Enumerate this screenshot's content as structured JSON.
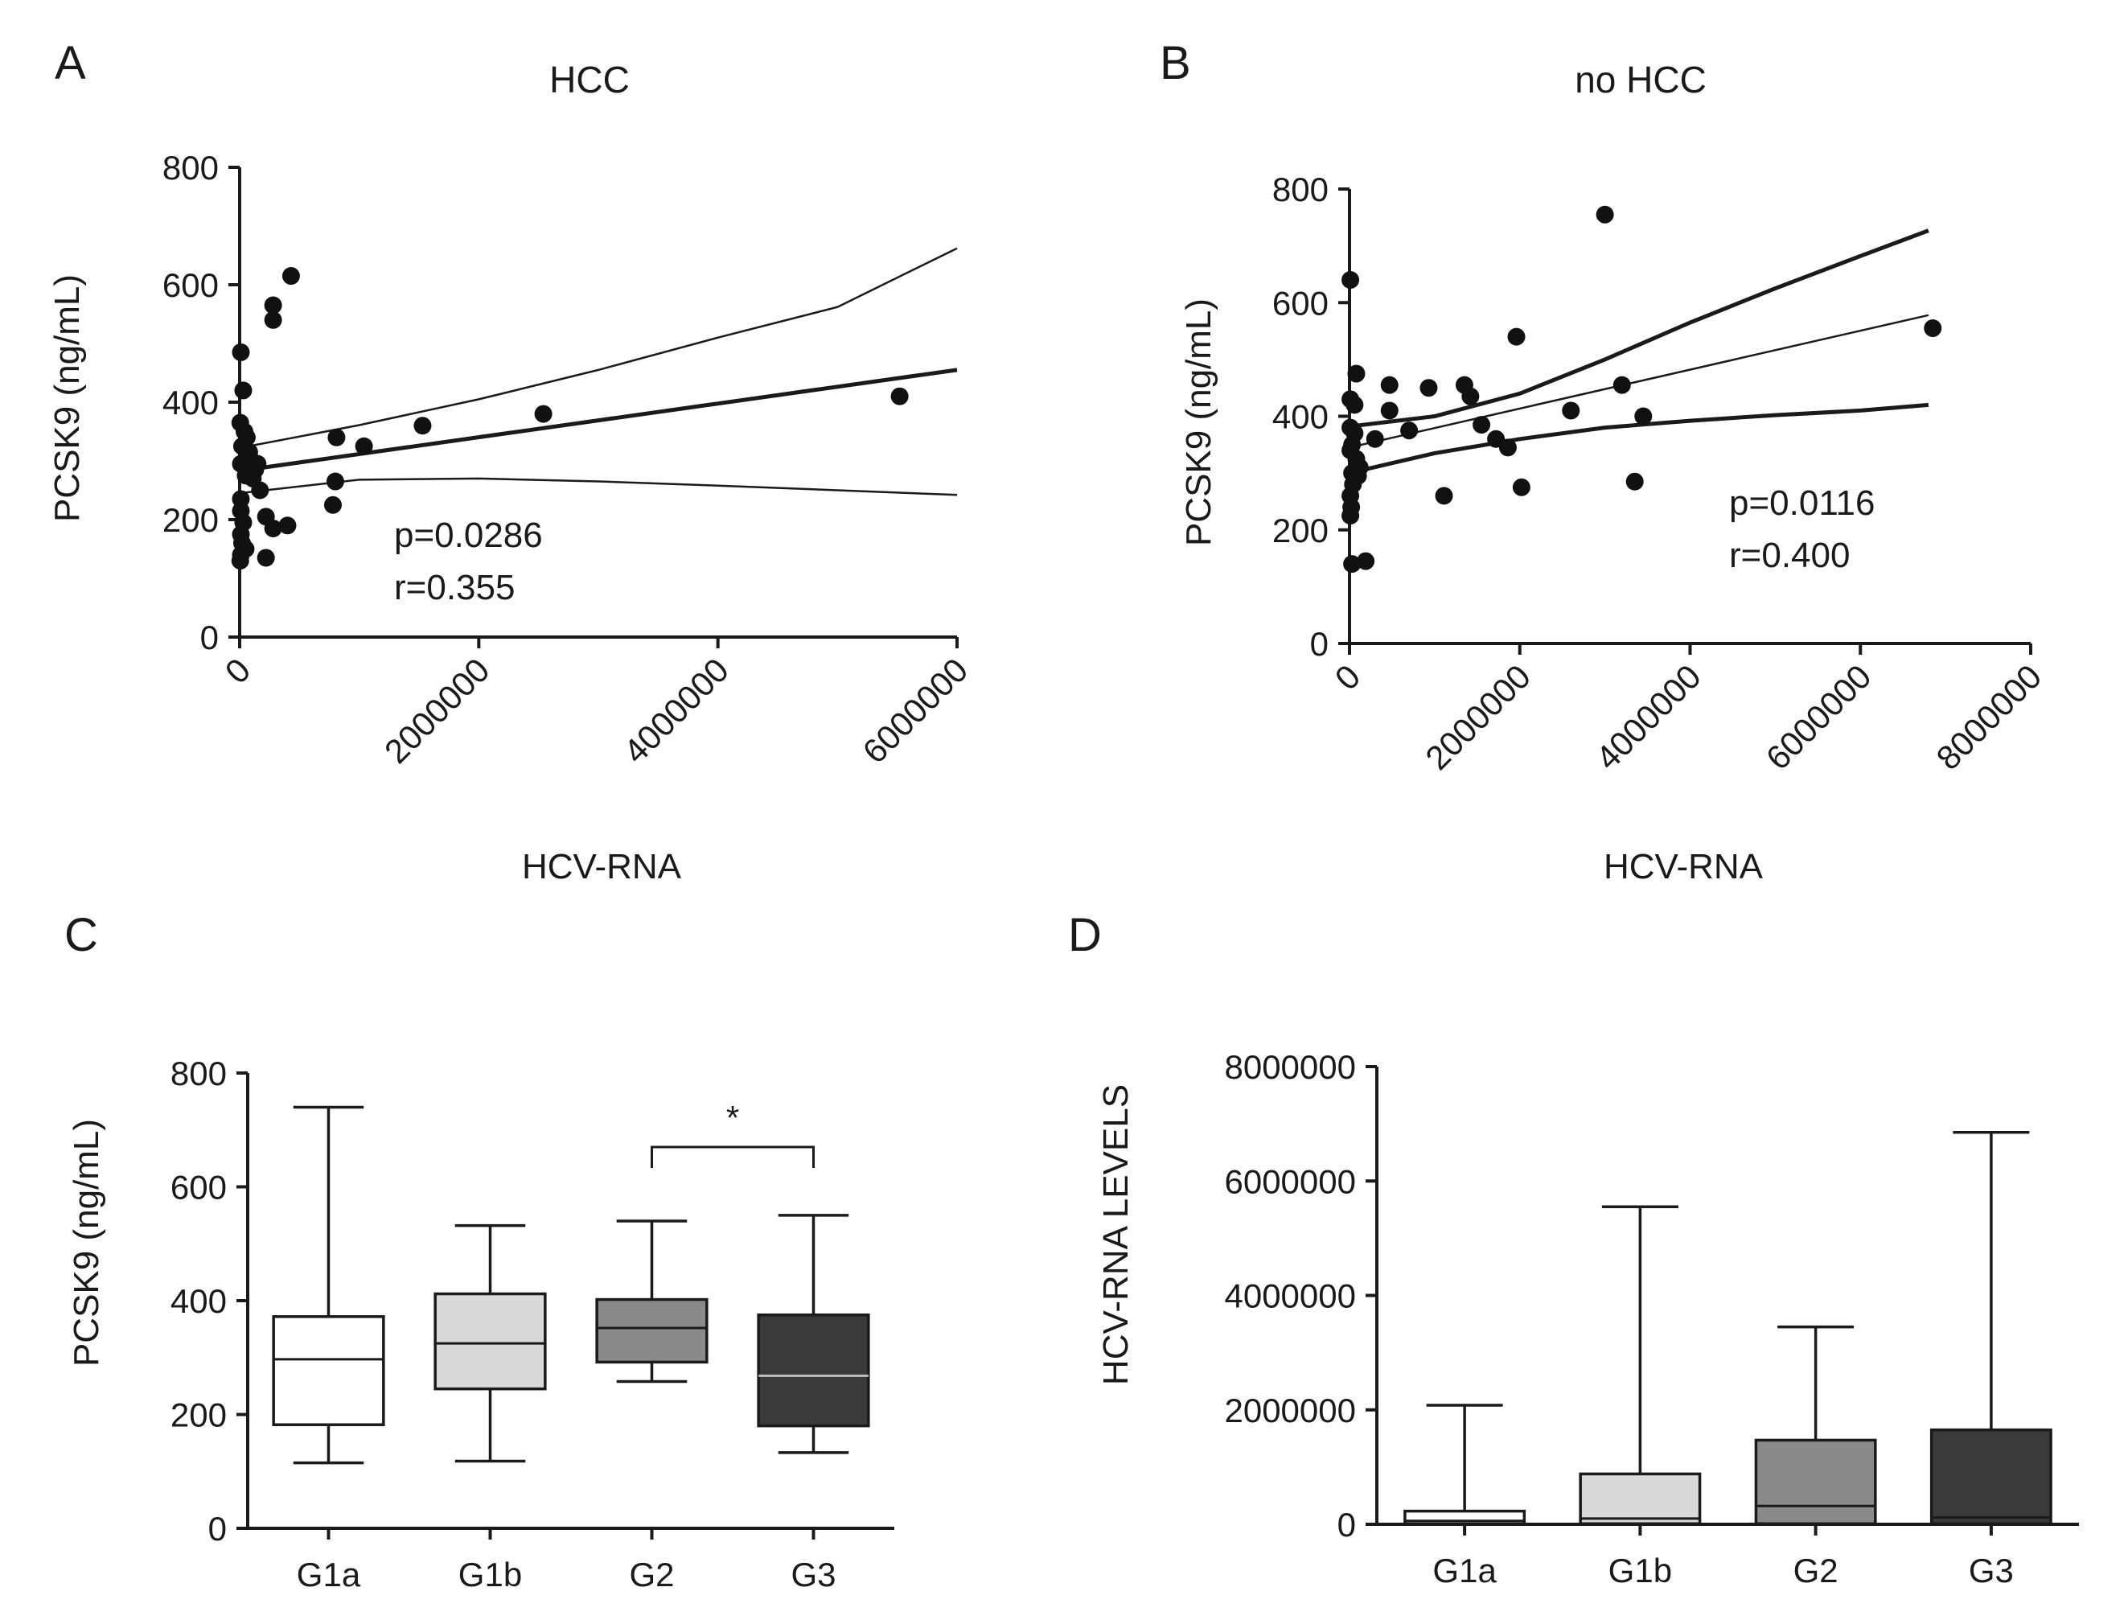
{
  "chart_data": [
    {
      "panel": "A",
      "type": "scatter",
      "title": "HCC",
      "xlabel": "HCV-RNA",
      "ylabel": "PCSK9 (ng/mL)",
      "xlim": [
        0,
        6000000
      ],
      "ylim": [
        0,
        800
      ],
      "xticks": [
        0,
        2000000,
        4000000,
        6000000
      ],
      "xtick_labels": [
        "0",
        "2000000",
        "4000000",
        "6000000"
      ],
      "yticks": [
        0,
        200,
        400,
        600,
        800
      ],
      "ytick_labels": [
        "0",
        "200",
        "400",
        "600",
        "800"
      ],
      "annotations": [
        "p=0.0286",
        "r=0.355"
      ],
      "points": [
        {
          "x": 10000,
          "y": 485
        },
        {
          "x": 30000,
          "y": 420
        },
        {
          "x": 5000,
          "y": 365
        },
        {
          "x": 40000,
          "y": 350
        },
        {
          "x": 60000,
          "y": 340
        },
        {
          "x": 20000,
          "y": 325
        },
        {
          "x": 80000,
          "y": 315
        },
        {
          "x": 100000,
          "y": 300
        },
        {
          "x": 150000,
          "y": 295
        },
        {
          "x": 130000,
          "y": 285
        },
        {
          "x": 10000,
          "y": 295
        },
        {
          "x": 50000,
          "y": 275
        },
        {
          "x": 110000,
          "y": 270
        },
        {
          "x": 170000,
          "y": 250
        },
        {
          "x": 10000,
          "y": 235
        },
        {
          "x": 10000,
          "y": 215
        },
        {
          "x": 30000,
          "y": 195
        },
        {
          "x": 10000,
          "y": 175
        },
        {
          "x": 20000,
          "y": 160
        },
        {
          "x": 50000,
          "y": 150
        },
        {
          "x": 10000,
          "y": 140
        },
        {
          "x": 5000,
          "y": 130
        },
        {
          "x": 220000,
          "y": 205
        },
        {
          "x": 280000,
          "y": 185
        },
        {
          "x": 400000,
          "y": 190
        },
        {
          "x": 220000,
          "y": 135
        },
        {
          "x": 280000,
          "y": 565
        },
        {
          "x": 280000,
          "y": 540
        },
        {
          "x": 430000,
          "y": 615
        },
        {
          "x": 780000,
          "y": 225
        },
        {
          "x": 800000,
          "y": 265
        },
        {
          "x": 810000,
          "y": 340
        },
        {
          "x": 1040000,
          "y": 325
        },
        {
          "x": 1530000,
          "y": 360
        },
        {
          "x": 2540000,
          "y": 380
        },
        {
          "x": 5520000,
          "y": 410
        }
      ],
      "fit": {
        "x": [
          0,
          6000000
        ],
        "y": [
          283,
          455
        ]
      },
      "ci_upper": [
        [
          0,
          322
        ],
        [
          1000000,
          361
        ],
        [
          2000000,
          405
        ],
        [
          3000000,
          455
        ],
        [
          4000000,
          510
        ],
        [
          5000000,
          562
        ],
        [
          6000000,
          662
        ]
      ],
      "ci_lower": [
        [
          0,
          245
        ],
        [
          1000000,
          268
        ],
        [
          2000000,
          270
        ],
        [
          3000000,
          265
        ],
        [
          4000000,
          258
        ],
        [
          5000000,
          250
        ],
        [
          6000000,
          242
        ]
      ]
    },
    {
      "panel": "B",
      "type": "scatter",
      "title": "no HCC",
      "xlabel": "HCV-RNA",
      "ylabel": "PCSK9 (ng/mL)",
      "xlim": [
        0,
        8000000
      ],
      "ylim": [
        0,
        800
      ],
      "xticks": [
        0,
        2000000,
        4000000,
        6000000,
        8000000
      ],
      "xtick_labels": [
        "0",
        "2000000",
        "4000000",
        "6000000",
        "8000000"
      ],
      "yticks": [
        0,
        200,
        400,
        600,
        800
      ],
      "ytick_labels": [
        "0",
        "200",
        "400",
        "600",
        "800"
      ],
      "annotations": [
        "p=0.0116",
        "r=0.400"
      ],
      "points": [
        {
          "x": 10000,
          "y": 640
        },
        {
          "x": 80000,
          "y": 475
        },
        {
          "x": 10000,
          "y": 430
        },
        {
          "x": 60000,
          "y": 420
        },
        {
          "x": 10000,
          "y": 380
        },
        {
          "x": 60000,
          "y": 370
        },
        {
          "x": 30000,
          "y": 350
        },
        {
          "x": 10000,
          "y": 340
        },
        {
          "x": 80000,
          "y": 325
        },
        {
          "x": 120000,
          "y": 310
        },
        {
          "x": 30000,
          "y": 300
        },
        {
          "x": 100000,
          "y": 295
        },
        {
          "x": 40000,
          "y": 280
        },
        {
          "x": 10000,
          "y": 260
        },
        {
          "x": 20000,
          "y": 240
        },
        {
          "x": 10000,
          "y": 225
        },
        {
          "x": 30000,
          "y": 140
        },
        {
          "x": 190000,
          "y": 145
        },
        {
          "x": 300000,
          "y": 360
        },
        {
          "x": 470000,
          "y": 455
        },
        {
          "x": 470000,
          "y": 410
        },
        {
          "x": 700000,
          "y": 375
        },
        {
          "x": 930000,
          "y": 450
        },
        {
          "x": 1110000,
          "y": 260
        },
        {
          "x": 1350000,
          "y": 455
        },
        {
          "x": 1420000,
          "y": 435
        },
        {
          "x": 1550000,
          "y": 385
        },
        {
          "x": 1720000,
          "y": 360
        },
        {
          "x": 1860000,
          "y": 345
        },
        {
          "x": 1960000,
          "y": 540
        },
        {
          "x": 2020000,
          "y": 275
        },
        {
          "x": 2600000,
          "y": 410
        },
        {
          "x": 3000000,
          "y": 755
        },
        {
          "x": 3200000,
          "y": 455
        },
        {
          "x": 3350000,
          "y": 285
        },
        {
          "x": 3450000,
          "y": 400
        },
        {
          "x": 6850000,
          "y": 555
        }
      ],
      "fit": {
        "x": [
          0,
          6800000
        ],
        "y": [
          345,
          578
        ]
      },
      "ci_upper": [
        [
          0,
          382
        ],
        [
          1000000,
          400
        ],
        [
          2000000,
          440
        ],
        [
          3000000,
          500
        ],
        [
          4000000,
          565
        ],
        [
          5000000,
          625
        ],
        [
          6000000,
          682
        ],
        [
          6800000,
          727
        ]
      ],
      "ci_lower": [
        [
          0,
          300
        ],
        [
          1000000,
          335
        ],
        [
          2000000,
          360
        ],
        [
          3000000,
          380
        ],
        [
          4000000,
          392
        ],
        [
          5000000,
          402
        ],
        [
          6000000,
          410
        ],
        [
          6800000,
          420
        ]
      ]
    },
    {
      "panel": "C",
      "type": "box",
      "title": "",
      "xlabel": "",
      "ylabel": "PCSK9 (ng/mL)",
      "ylim": [
        0,
        800
      ],
      "yticks": [
        0,
        200,
        400,
        600,
        800
      ],
      "ytick_labels": [
        "0",
        "200",
        "400",
        "600",
        "800"
      ],
      "categories": [
        "G1a",
        "G1b",
        "G2",
        "G3"
      ],
      "colors": [
        "#ffffff",
        "#d9d9d9",
        "#8a8a8a",
        "#3a3a3a"
      ],
      "median_colors": [
        "#1a1a1a",
        "#1a1a1a",
        "#1a1a1a",
        "#bfbfbf"
      ],
      "boxes": [
        {
          "min": 115,
          "q1": 182,
          "median": 297,
          "q3": 372,
          "max": 740
        },
        {
          "min": 118,
          "q1": 245,
          "median": 325,
          "q3": 412,
          "max": 532
        },
        {
          "min": 258,
          "q1": 292,
          "median": 352,
          "q3": 402,
          "max": 540
        },
        {
          "min": 133,
          "q1": 180,
          "median": 268,
          "q3": 375,
          "max": 550
        }
      ],
      "significance": {
        "from": "G2",
        "to": "G3",
        "label": "*",
        "level": 670
      }
    },
    {
      "panel": "D",
      "type": "box",
      "title": "",
      "xlabel": "",
      "ylabel": "HCV-RNA LEVELS",
      "ylim": [
        0,
        8000000
      ],
      "yticks": [
        0,
        2000000,
        4000000,
        6000000,
        8000000
      ],
      "ytick_labels": [
        "0",
        "2000000",
        "4000000",
        "6000000",
        "8000000"
      ],
      "categories": [
        "G1a",
        "G1b",
        "G2",
        "G3"
      ],
      "colors": [
        "#ffffff",
        "#d9d9d9",
        "#8a8a8a",
        "#3a3a3a"
      ],
      "median_colors": [
        "#1a1a1a",
        "#1a1a1a",
        "#1a1a1a",
        "#1a1a1a"
      ],
      "boxes": [
        {
          "min": 0,
          "q1": 10000,
          "median": 60000,
          "q3": 230000,
          "max": 2080000
        },
        {
          "min": 0,
          "q1": 10000,
          "median": 100000,
          "q3": 880000,
          "max": 5550000
        },
        {
          "min": 0,
          "q1": 10000,
          "median": 320000,
          "q3": 1470000,
          "max": 3450000
        },
        {
          "min": 0,
          "q1": 10000,
          "median": 120000,
          "q3": 1650000,
          "max": 6850000
        }
      ]
    }
  ]
}
